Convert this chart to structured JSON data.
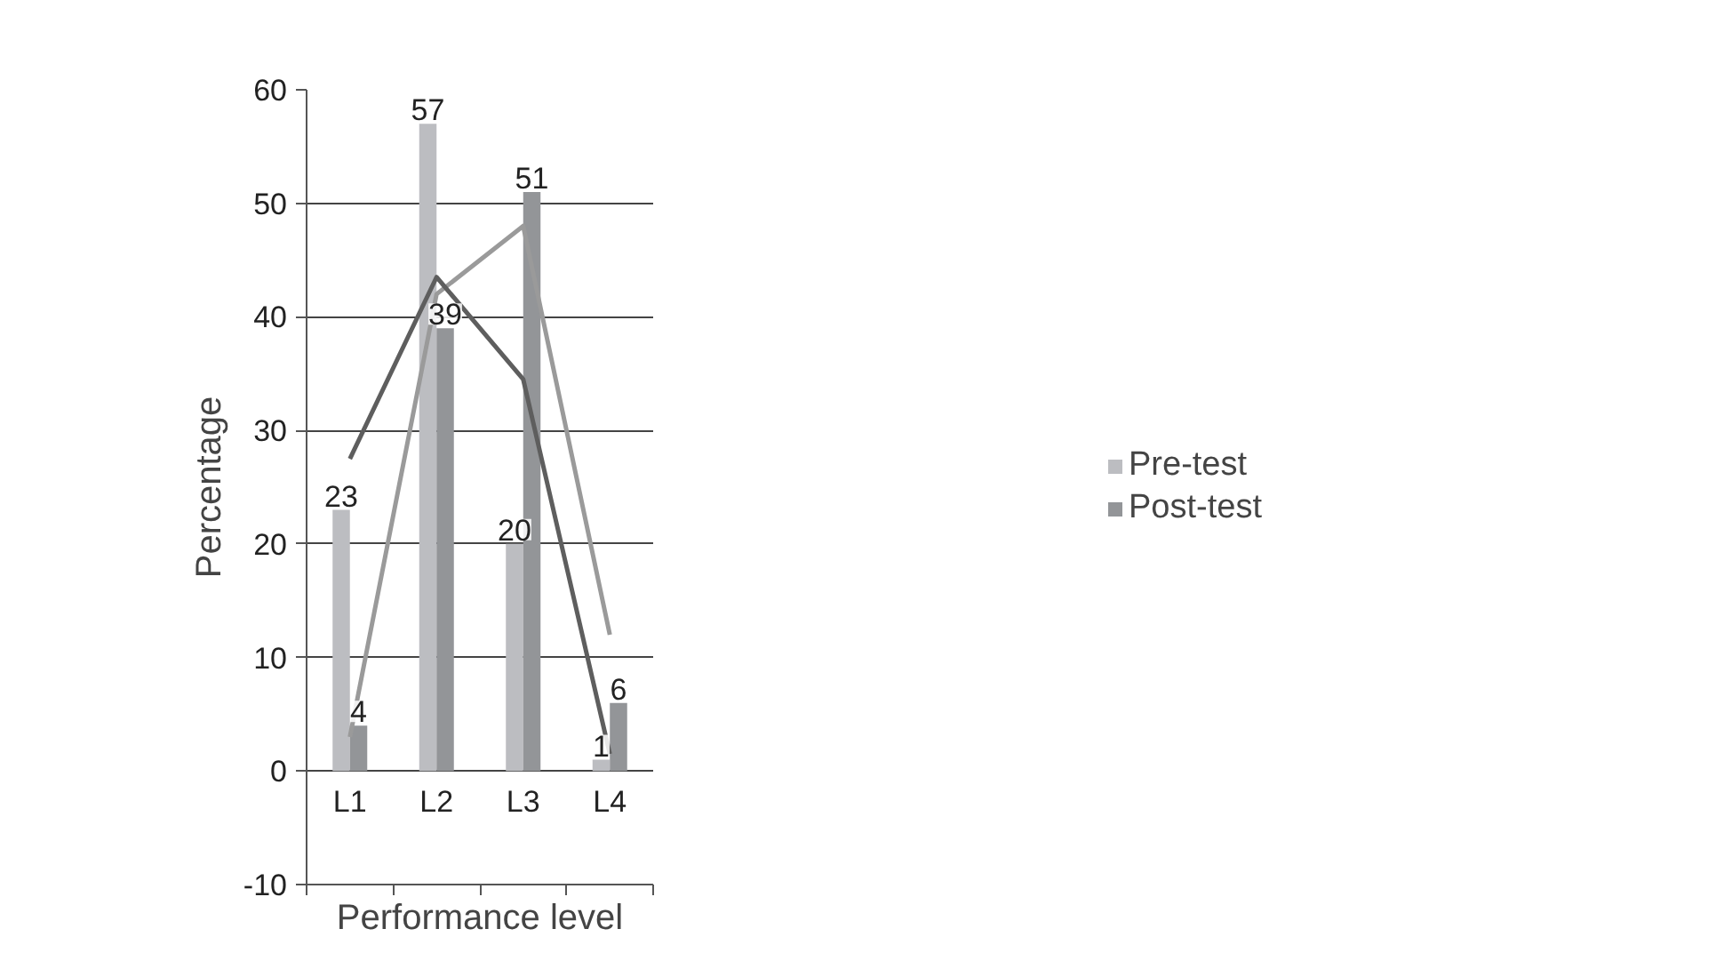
{
  "chart_data": {
    "type": "bar",
    "xlabel": "Performance level",
    "ylabel": "Percentage",
    "categories": [
      "L1",
      "L2",
      "L3",
      "L4"
    ],
    "series": [
      {
        "name": "Pre-test",
        "color": "#bcbdc1",
        "values": [
          23,
          57,
          20,
          1
        ],
        "value_labels": [
          "23",
          "57",
          "20",
          "1"
        ]
      },
      {
        "name": "Post-test",
        "color": "#939598",
        "values": [
          4,
          39,
          51,
          6
        ],
        "value_labels": [
          "4",
          "39",
          "51",
          "6"
        ]
      },
      {
        "type": "line",
        "color": "#9a9a9a",
        "values": [
          3,
          42,
          48,
          12
        ]
      },
      {
        "type": "line",
        "color": "#5e5e5e",
        "values": [
          27.5,
          43.5,
          34.5,
          1.5
        ]
      }
    ],
    "ylim": [
      -10,
      60
    ],
    "yticks": [
      -10,
      0,
      10,
      20,
      30,
      40,
      50,
      60
    ],
    "grid": "y",
    "legend": "right"
  }
}
